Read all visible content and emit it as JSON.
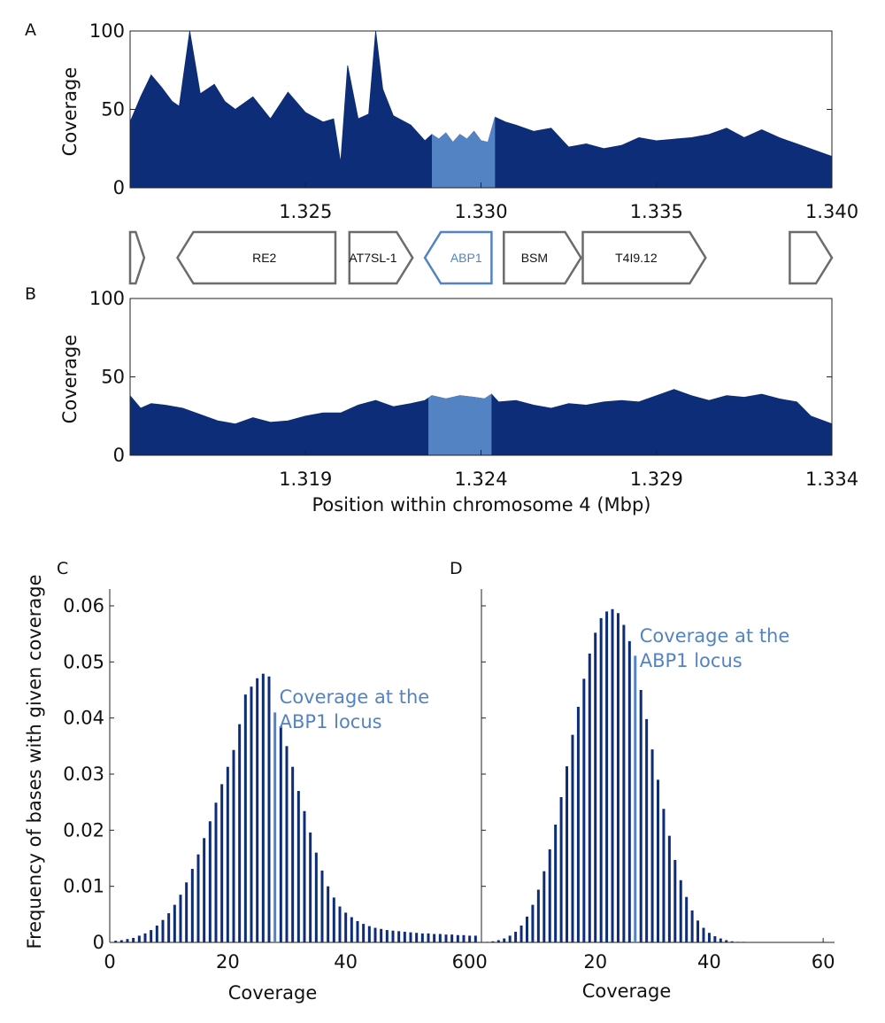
{
  "colors": {
    "dark_blue": "#0d2d78",
    "light_blue": "#5383c3",
    "gene_outline": "#6b6b6b",
    "axis": "#222222"
  },
  "chart_data": [
    {
      "id": "A",
      "type": "area",
      "panel_label": "A",
      "ylabel": "Coverage",
      "xlim": [
        1.32,
        1.34
      ],
      "ylim": [
        0,
        100
      ],
      "xticks": [
        1.325,
        1.33,
        1.335,
        1.34
      ],
      "xtick_labels": [
        "1.325",
        "1.330",
        "1.335",
        "1.340"
      ],
      "yticks": [
        0,
        50,
        100
      ],
      "ytick_labels": [
        "0",
        "50",
        "100"
      ],
      "highlight_range": [
        1.3286,
        1.3304
      ],
      "x": [
        1.32,
        1.3203,
        1.3206,
        1.3209,
        1.3212,
        1.3214,
        1.3217,
        1.322,
        1.3224,
        1.3227,
        1.323,
        1.3235,
        1.324,
        1.3245,
        1.325,
        1.3255,
        1.3258,
        1.326,
        1.3262,
        1.3265,
        1.3268,
        1.327,
        1.3272,
        1.3275,
        1.328,
        1.3284,
        1.3286,
        1.3288,
        1.329,
        1.3292,
        1.3294,
        1.3296,
        1.3298,
        1.33,
        1.3302,
        1.3304,
        1.3307,
        1.331,
        1.3315,
        1.332,
        1.3325,
        1.333,
        1.3335,
        1.334,
        1.3345,
        1.335,
        1.3355,
        1.336,
        1.3365,
        1.337,
        1.3375,
        1.338,
        1.3385,
        1.339,
        1.3395,
        1.34
      ],
      "values": [
        42,
        58,
        72,
        64,
        55,
        52,
        100,
        60,
        66,
        55,
        50,
        58,
        44,
        61,
        48,
        42,
        44,
        16,
        78,
        44,
        47,
        100,
        63,
        46,
        40,
        30,
        34,
        31,
        35,
        29,
        34,
        31,
        36,
        30,
        29,
        45,
        42,
        40,
        36,
        38,
        26,
        28,
        25,
        27,
        32,
        30,
        31,
        32,
        34,
        38,
        32,
        37,
        32,
        28,
        24,
        20
      ]
    },
    {
      "id": "B",
      "type": "area",
      "panel_label": "B",
      "ylabel": "Coverage",
      "xlabel": "Position within chromosome 4 (Mbp)",
      "xlim": [
        1.314,
        1.334
      ],
      "ylim": [
        0,
        100
      ],
      "xticks": [
        1.319,
        1.324,
        1.329,
        1.334
      ],
      "xtick_labels": [
        "1.319",
        "1.324",
        "1.329",
        "1.334"
      ],
      "yticks": [
        0,
        50,
        100
      ],
      "ytick_labels": [
        "0",
        "50",
        "100"
      ],
      "highlight_range": [
        1.3225,
        1.3243
      ],
      "x": [
        1.314,
        1.3143,
        1.3146,
        1.315,
        1.3155,
        1.316,
        1.3165,
        1.317,
        1.3175,
        1.318,
        1.3185,
        1.319,
        1.3195,
        1.32,
        1.3205,
        1.321,
        1.3215,
        1.322,
        1.3224,
        1.3226,
        1.323,
        1.3234,
        1.3238,
        1.3241,
        1.3243,
        1.3245,
        1.325,
        1.3255,
        1.326,
        1.3265,
        1.327,
        1.3275,
        1.328,
        1.3285,
        1.329,
        1.3295,
        1.33,
        1.3305,
        1.331,
        1.3315,
        1.332,
        1.3325,
        1.333,
        1.3334,
        1.334
      ],
      "values": [
        38,
        30,
        33,
        32,
        30,
        26,
        22,
        20,
        24,
        21,
        22,
        25,
        27,
        27,
        32,
        35,
        31,
        33,
        35,
        38,
        36,
        38,
        37,
        36,
        39,
        34,
        35,
        32,
        30,
        33,
        32,
        34,
        35,
        34,
        38,
        42,
        38,
        35,
        38,
        37,
        39,
        36,
        34,
        25,
        20
      ]
    },
    {
      "id": "genes",
      "type": "table",
      "genes": [
        {
          "name": "",
          "start": 1.32,
          "end": 1.3204,
          "strand": "+"
        },
        {
          "name": "RE2",
          "start": 1.32135,
          "end": 1.32585,
          "strand": "-"
        },
        {
          "name": "AT7SL-1",
          "start": 1.32625,
          "end": 1.32805,
          "strand": "+"
        },
        {
          "name": "ABP1",
          "start": 1.3284,
          "end": 1.3303,
          "strand": "-",
          "highlight": true
        },
        {
          "name": "BSM",
          "start": 1.33065,
          "end": 1.33285,
          "strand": "+"
        },
        {
          "name": "T4I9.12",
          "start": 1.3329,
          "end": 1.3364,
          "strand": "+"
        },
        {
          "name": "",
          "start": 1.3388,
          "end": 1.34,
          "strand": "+"
        }
      ]
    },
    {
      "id": "C",
      "type": "bar",
      "panel_label": "C",
      "xlabel": "Coverage",
      "ylabel": "Frequency of bases with given coverage",
      "xlim": [
        0,
        63
      ],
      "ylim": [
        0,
        0.063
      ],
      "xticks": [
        0,
        20,
        40,
        60
      ],
      "xtick_labels": [
        "0",
        "20",
        "40",
        "60"
      ],
      "yticks": [
        0,
        0.01,
        0.02,
        0.03,
        0.04,
        0.05,
        0.06
      ],
      "ytick_labels": [
        "0",
        "0.01",
        "0.02",
        "0.03",
        "0.04",
        "0.05",
        "0.06"
      ],
      "x": [
        1,
        2,
        3,
        4,
        5,
        6,
        7,
        8,
        9,
        10,
        11,
        12,
        13,
        14,
        15,
        16,
        17,
        18,
        19,
        20,
        21,
        22,
        23,
        24,
        25,
        26,
        27,
        28,
        29,
        30,
        31,
        32,
        33,
        34,
        35,
        36,
        37,
        38,
        39,
        40,
        41,
        42,
        43,
        44,
        45,
        46,
        47,
        48,
        49,
        50,
        51,
        52,
        53,
        54,
        55,
        56,
        57,
        58,
        59,
        60,
        61,
        62
      ],
      "values": [
        0.0003,
        0.0004,
        0.0006,
        0.0008,
        0.0012,
        0.0016,
        0.0022,
        0.003,
        0.004,
        0.0052,
        0.0067,
        0.0085,
        0.0107,
        0.0131,
        0.0157,
        0.0186,
        0.0216,
        0.0249,
        0.0282,
        0.0313,
        0.0343,
        0.0389,
        0.0442,
        0.0456,
        0.0471,
        0.0479,
        0.0474,
        0.041,
        0.0385,
        0.035,
        0.0313,
        0.027,
        0.0234,
        0.0196,
        0.016,
        0.0128,
        0.01,
        0.008,
        0.0064,
        0.0053,
        0.0045,
        0.0038,
        0.0033,
        0.0029,
        0.0026,
        0.0024,
        0.0022,
        0.0021,
        0.002,
        0.0019,
        0.0018,
        0.0017,
        0.0016,
        0.0016,
        0.0015,
        0.0015,
        0.0014,
        0.0014,
        0.0013,
        0.0013,
        0.0012,
        0.0012
      ],
      "highlight_x": 28,
      "annotation": "Coverage at the ABP1 locus",
      "annotation_lines": [
        "Coverage at the",
        "ABP1 locus"
      ]
    },
    {
      "id": "D",
      "type": "bar",
      "panel_label": "D",
      "xlabel": "Coverage",
      "xlim": [
        0,
        62
      ],
      "ylim": [
        0,
        0.063
      ],
      "xticks": [
        0,
        20,
        40,
        60
      ],
      "xtick_labels": [
        "0",
        "20",
        "40",
        "60"
      ],
      "x": [
        1,
        2,
        3,
        4,
        5,
        6,
        7,
        8,
        9,
        10,
        11,
        12,
        13,
        14,
        15,
        16,
        17,
        18,
        19,
        20,
        21,
        22,
        23,
        24,
        25,
        26,
        27,
        28,
        29,
        30,
        31,
        32,
        33,
        34,
        35,
        36,
        37,
        38,
        39,
        40,
        41,
        42,
        43,
        44,
        45,
        46,
        47
      ],
      "values": [
        0.0001,
        0.0002,
        0.0004,
        0.0007,
        0.0012,
        0.0019,
        0.003,
        0.0046,
        0.0067,
        0.0094,
        0.0127,
        0.0166,
        0.021,
        0.0259,
        0.0314,
        0.037,
        0.042,
        0.047,
        0.0515,
        0.0552,
        0.0578,
        0.059,
        0.0594,
        0.0587,
        0.0566,
        0.0537,
        0.0511,
        0.045,
        0.0398,
        0.0344,
        0.029,
        0.0238,
        0.019,
        0.0147,
        0.0111,
        0.0081,
        0.0057,
        0.0039,
        0.0026,
        0.0017,
        0.0011,
        0.0007,
        0.0004,
        0.0002,
        0.0001,
        0.0001,
        5e-05
      ],
      "highlight_x": 27,
      "annotation": "Coverage at the ABP1 locus",
      "annotation_lines": [
        "Coverage at the",
        "ABP1 locus"
      ]
    }
  ]
}
